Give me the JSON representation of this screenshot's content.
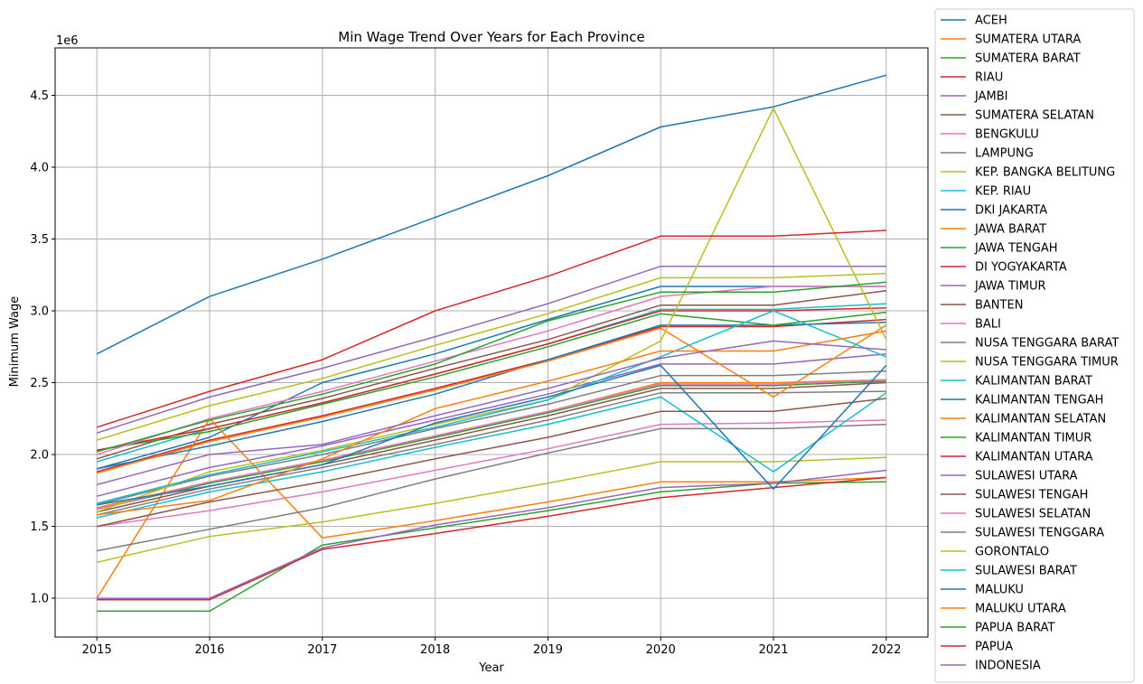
{
  "chart_data": {
    "type": "line",
    "title": "Min Wage Trend Over Years for Each Province",
    "xlabel": "Year",
    "ylabel": "Minimum Wage",
    "y_scale_label": "1e6",
    "x": [
      2015,
      2016,
      2017,
      2018,
      2019,
      2020,
      2021,
      2022
    ],
    "xlim": [
      2014.63,
      2022.37
    ],
    "ylim": [
      0.73,
      4.83
    ],
    "y_ticks": [
      1.0,
      1.5,
      2.0,
      2.5,
      3.0,
      3.5,
      4.0,
      4.5
    ],
    "y_tick_labels": [
      "1.0",
      "1.5",
      "2.0",
      "2.5",
      "3.0",
      "3.5",
      "4.0",
      "4.5"
    ],
    "grid": true,
    "legend_position": "right, outside plot",
    "series": [
      {
        "name": "ACEH",
        "color": "#1f77b4",
        "values": [
          1.9,
          2.12,
          2.5,
          2.7,
          2.94,
          3.17,
          3.17,
          3.17
        ]
      },
      {
        "name": "SUMATERA UTARA",
        "color": "#ff7f0e",
        "values": [
          1.63,
          1.81,
          1.96,
          2.13,
          2.3,
          2.5,
          2.5,
          2.52
        ]
      },
      {
        "name": "SUMATERA BARAT",
        "color": "#2ca02c",
        "values": [
          1.62,
          1.8,
          1.95,
          2.12,
          2.29,
          2.48,
          2.48,
          2.51
        ]
      },
      {
        "name": "RIAU",
        "color": "#d62728",
        "values": [
          1.88,
          2.1,
          2.27,
          2.46,
          2.66,
          2.89,
          2.89,
          2.94
        ]
      },
      {
        "name": "JAMBI",
        "color": "#9467bd",
        "values": [
          1.71,
          1.91,
          2.06,
          2.24,
          2.42,
          2.63,
          2.63,
          2.7
        ]
      },
      {
        "name": "SUMATERA SELATAN",
        "color": "#8c564b",
        "values": [
          1.97,
          2.21,
          2.39,
          2.6,
          2.8,
          3.04,
          3.04,
          3.14
        ]
      },
      {
        "name": "BENGKULU",
        "color": "#e377c2",
        "values": [
          1.5,
          1.61,
          1.74,
          1.89,
          2.04,
          2.21,
          2.22,
          2.24
        ]
      },
      {
        "name": "LAMPUNG",
        "color": "#7f7f7f",
        "values": [
          1.58,
          1.76,
          1.91,
          2.07,
          2.24,
          2.43,
          2.43,
          2.44
        ]
      },
      {
        "name": "KEP. BANGKA BELITUNG",
        "color": "#bcbd22",
        "values": [
          2.1,
          2.34,
          2.53,
          2.76,
          2.98,
          3.23,
          3.23,
          3.26
        ]
      },
      {
        "name": "KEP. RIAU",
        "color": "#17becf",
        "values": [
          1.95,
          2.18,
          2.36,
          2.56,
          2.77,
          3.01,
          3.01,
          3.05
        ]
      },
      {
        "name": "DKI JAKARTA",
        "color": "#1f77b4",
        "values": [
          2.7,
          3.1,
          3.36,
          3.65,
          3.94,
          4.28,
          4.42,
          4.64
        ]
      },
      {
        "name": "JAWA BARAT",
        "color": "#ff7f0e",
        "values": [
          1.0,
          2.25,
          1.42,
          1.54,
          1.67,
          1.81,
          1.81,
          1.84
        ]
      },
      {
        "name": "JAWA TENGAH",
        "color": "#2ca02c",
        "values": [
          0.91,
          0.91,
          1.37,
          1.49,
          1.61,
          1.74,
          1.8,
          1.81
        ]
      },
      {
        "name": "DI YOGYAKARTA",
        "color": "#d62728",
        "values": [
          0.99,
          0.99,
          1.34,
          1.45,
          1.57,
          1.7,
          1.77,
          1.84
        ]
      },
      {
        "name": "JAWA TIMUR",
        "color": "#9467bd",
        "values": [
          1.0,
          1.0,
          1.35,
          1.51,
          1.63,
          1.77,
          1.8,
          1.89
        ]
      },
      {
        "name": "BANTEN",
        "color": "#8c564b",
        "values": [
          1.6,
          1.78,
          1.93,
          2.1,
          2.27,
          2.46,
          2.46,
          2.5
        ]
      },
      {
        "name": "BALI",
        "color": "#e377c2",
        "values": [
          1.62,
          1.81,
          1.96,
          2.13,
          2.3,
          2.49,
          2.49,
          2.52
        ]
      },
      {
        "name": "NUSA TENGGARA BARAT",
        "color": "#7f7f7f",
        "values": [
          1.33,
          1.48,
          1.63,
          1.83,
          2.01,
          2.18,
          2.18,
          2.21
        ]
      },
      {
        "name": "NUSA TENGGARA TIMUR",
        "color": "#bcbd22",
        "values": [
          1.25,
          1.43,
          1.53,
          1.66,
          1.8,
          1.95,
          1.95,
          1.98
        ]
      },
      {
        "name": "KALIMANTAN BARAT",
        "color": "#17becf",
        "values": [
          1.56,
          1.74,
          1.88,
          2.05,
          2.21,
          2.4,
          1.88,
          2.43
        ]
      },
      {
        "name": "KALIMANTAN TENGAH",
        "color": "#1f77b4",
        "values": [
          1.9,
          2.06,
          2.23,
          2.42,
          2.66,
          2.9,
          2.9,
          2.92
        ]
      },
      {
        "name": "KALIMANTAN SELATAN",
        "color": "#ff7f0e",
        "values": [
          1.87,
          2.09,
          2.26,
          2.45,
          2.65,
          2.88,
          2.4,
          2.9
        ]
      },
      {
        "name": "KALIMANTAN TIMUR",
        "color": "#2ca02c",
        "values": [
          2.03,
          2.16,
          2.35,
          2.54,
          2.75,
          2.98,
          2.9,
          2.99
        ]
      },
      {
        "name": "KALIMANTAN UTARA",
        "color": "#d62728",
        "values": [
          2.03,
          2.18,
          2.36,
          2.56,
          2.77,
          3.0,
          3.0,
          3.02
        ]
      },
      {
        "name": "SULAWESI UTARA",
        "color": "#9467bd",
        "values": [
          2.15,
          2.4,
          2.6,
          2.82,
          3.05,
          3.31,
          3.31,
          3.31
        ]
      },
      {
        "name": "SULAWESI TENGAH",
        "color": "#8c564b",
        "values": [
          1.5,
          1.67,
          1.81,
          1.97,
          2.12,
          2.3,
          2.3,
          2.39
        ]
      },
      {
        "name": "SULAWESI SELATAN",
        "color": "#e377c2",
        "values": [
          2.0,
          2.25,
          2.44,
          2.65,
          2.86,
          3.1,
          3.17,
          3.17
        ]
      },
      {
        "name": "SULAWESI TENGGARA",
        "color": "#7f7f7f",
        "values": [
          1.65,
          1.85,
          2.0,
          2.18,
          2.35,
          2.55,
          2.55,
          2.58
        ]
      },
      {
        "name": "GORONTALO",
        "color": "#bcbd22",
        "values": [
          1.6,
          1.88,
          2.03,
          2.21,
          2.38,
          2.79,
          4.41,
          2.8
        ]
      },
      {
        "name": "SULAWESI BARAT",
        "color": "#17becf",
        "values": [
          1.66,
          1.86,
          2.02,
          2.19,
          2.38,
          2.68,
          3.0,
          2.68
        ]
      },
      {
        "name": "MALUKU",
        "color": "#1f77b4",
        "values": [
          1.65,
          1.78,
          1.93,
          2.22,
          2.4,
          2.62,
          1.76,
          2.62
        ]
      },
      {
        "name": "MALUKU UTARA",
        "color": "#ff7f0e",
        "values": [
          1.58,
          1.68,
          1.97,
          2.32,
          2.51,
          2.72,
          2.72,
          2.86
        ]
      },
      {
        "name": "PAPUA BARAT",
        "color": "#2ca02c",
        "values": [
          2.02,
          2.24,
          2.42,
          2.63,
          2.93,
          3.13,
          3.13,
          3.2
        ]
      },
      {
        "name": "PAPUA",
        "color": "#d62728",
        "values": [
          2.19,
          2.44,
          2.66,
          3.0,
          3.24,
          3.52,
          3.52,
          3.56
        ]
      },
      {
        "name": "INDONESIA",
        "color": "#9467bd",
        "values": [
          1.79,
          2.0,
          2.07,
          2.27,
          2.46,
          2.67,
          2.79,
          2.73
        ]
      }
    ]
  }
}
